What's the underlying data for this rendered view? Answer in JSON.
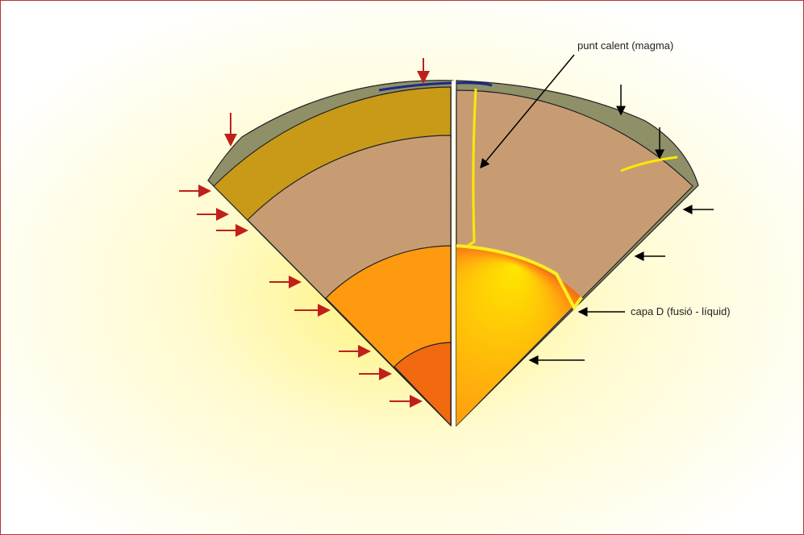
{
  "labels": {
    "hotspot": "punt calent (magma)",
    "d_layer": "capa D (fusió - líquid)"
  }
}
